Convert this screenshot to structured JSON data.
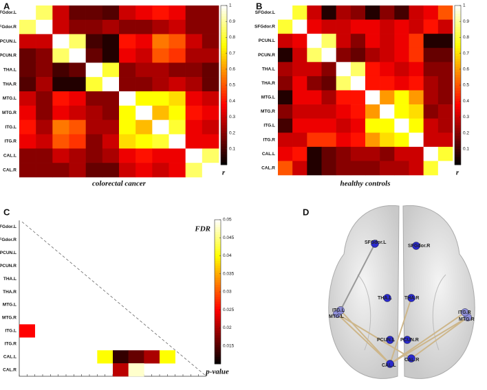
{
  "chart_data": [
    {
      "type": "heatmap",
      "panel": "A",
      "xlabel": "colorectal cancer",
      "colorbar_label": "r",
      "colormap": "hot",
      "categories": [
        "SFGdor.L",
        "SFGdor.R",
        "PCUN.L",
        "PCUN.R",
        "THA.L",
        "THA.R",
        "MTG.L",
        "MTG.R",
        "ITG.L",
        "ITG.R",
        "CAL.L",
        "CAL.R"
      ],
      "values": [
        [
          1,
          0.85,
          0.3,
          0.15,
          0.15,
          0.12,
          0.3,
          0.35,
          0.4,
          0.35,
          0.2,
          0.2
        ],
        [
          0.85,
          1,
          0.3,
          0.2,
          0.2,
          0.25,
          0.2,
          0.2,
          0.25,
          0.3,
          0.2,
          0.2
        ],
        [
          0.3,
          0.3,
          1,
          0.85,
          0.1,
          0.05,
          0.4,
          0.35,
          0.55,
          0.5,
          0.3,
          0.2
        ],
        [
          0.15,
          0.2,
          0.85,
          1,
          0.15,
          0.05,
          0.35,
          0.3,
          0.5,
          0.45,
          0.25,
          0.25
        ],
        [
          0.15,
          0.2,
          0.1,
          0.15,
          1,
          0.8,
          0.2,
          0.25,
          0.25,
          0.2,
          0.2,
          0.15
        ],
        [
          0.12,
          0.25,
          0.05,
          0.05,
          0.8,
          1,
          0.2,
          0.2,
          0.25,
          0.3,
          0.25,
          0.15
        ],
        [
          0.3,
          0.2,
          0.4,
          0.35,
          0.2,
          0.2,
          1,
          0.75,
          0.75,
          0.7,
          0.35,
          0.3
        ],
        [
          0.35,
          0.2,
          0.35,
          0.3,
          0.25,
          0.2,
          0.75,
          1,
          0.65,
          0.75,
          0.4,
          0.35
        ],
        [
          0.4,
          0.25,
          0.55,
          0.5,
          0.25,
          0.25,
          0.75,
          0.65,
          1,
          0.8,
          0.35,
          0.3
        ],
        [
          0.35,
          0.3,
          0.5,
          0.45,
          0.2,
          0.3,
          0.7,
          0.75,
          0.8,
          1,
          0.35,
          0.35
        ],
        [
          0.2,
          0.2,
          0.3,
          0.25,
          0.2,
          0.25,
          0.35,
          0.4,
          0.35,
          0.35,
          1,
          0.85
        ],
        [
          0.2,
          0.2,
          0.2,
          0.25,
          0.15,
          0.15,
          0.3,
          0.35,
          0.3,
          0.35,
          0.85,
          1
        ]
      ],
      "zlim": [
        0,
        1
      ],
      "zticks": [
        0.1,
        0.2,
        0.3,
        0.4,
        0.5,
        0.6,
        0.7,
        0.8,
        0.9,
        1
      ]
    },
    {
      "type": "heatmap",
      "panel": "B",
      "xlabel": "healthy controls",
      "colorbar_label": "r",
      "colormap": "hot",
      "categories": [
        "SFGdor.L",
        "SFGdor.R",
        "PCUN.L",
        "PCUN.R",
        "THA.L",
        "THA.R",
        "MTG.L",
        "MTG.R",
        "ITG.L",
        "ITG.R",
        "CAL.L",
        "CAL.R"
      ],
      "values": [
        [
          1,
          0.8,
          0.3,
          0.05,
          0.25,
          0.2,
          0.05,
          0.2,
          0.1,
          0.3,
          0.35,
          0.5
        ],
        [
          0.8,
          1,
          0.35,
          0.3,
          0.3,
          0.35,
          0.35,
          0.3,
          0.35,
          0.3,
          0.4,
          0.3
        ],
        [
          0.3,
          0.35,
          1,
          0.85,
          0.3,
          0.2,
          0.35,
          0.3,
          0.35,
          0.45,
          0.05,
          0.05
        ],
        [
          0.05,
          0.3,
          0.85,
          1,
          0.2,
          0.15,
          0.25,
          0.3,
          0.35,
          0.45,
          0.15,
          0.15
        ],
        [
          0.25,
          0.3,
          0.3,
          0.2,
          1,
          0.85,
          0.4,
          0.35,
          0.3,
          0.35,
          0.2,
          0.2
        ],
        [
          0.2,
          0.35,
          0.2,
          0.15,
          0.85,
          1,
          0.4,
          0.4,
          0.35,
          0.4,
          0.25,
          0.2
        ],
        [
          0.05,
          0.35,
          0.35,
          0.25,
          0.4,
          0.4,
          1,
          0.6,
          0.75,
          0.6,
          0.25,
          0.2
        ],
        [
          0.2,
          0.3,
          0.3,
          0.3,
          0.35,
          0.4,
          0.6,
          1,
          0.75,
          0.7,
          0.2,
          0.25
        ],
        [
          0.1,
          0.35,
          0.35,
          0.35,
          0.3,
          0.35,
          0.75,
          0.75,
          1,
          0.75,
          0.3,
          0.25
        ],
        [
          0.3,
          0.3,
          0.45,
          0.45,
          0.35,
          0.4,
          0.6,
          0.7,
          0.75,
          1,
          0.3,
          0.3
        ],
        [
          0.35,
          0.4,
          0.05,
          0.15,
          0.2,
          0.25,
          0.25,
          0.2,
          0.3,
          0.3,
          1,
          0.8
        ],
        [
          0.5,
          0.3,
          0.05,
          0.15,
          0.2,
          0.2,
          0.2,
          0.25,
          0.25,
          0.3,
          0.8,
          1
        ]
      ],
      "zlim": [
        0,
        1
      ],
      "zticks": [
        0.1,
        0.2,
        0.3,
        0.4,
        0.5,
        0.6,
        0.7,
        0.8,
        0.9,
        1
      ]
    },
    {
      "type": "heatmap",
      "panel": "C",
      "colorbar_title": "FDR",
      "colorbar_label": "p-value",
      "colormap": "hot",
      "categories": [
        "SFGdor.L",
        "SFGdor.R",
        "PCUN.L",
        "PCUN.R",
        "THA.L",
        "THA.R",
        "MTG.L",
        "MTG.R",
        "ITG.L",
        "ITG.R",
        "CAL.L",
        "CAL.R"
      ],
      "values": [
        [
          null,
          null,
          null,
          null,
          null,
          null,
          null,
          null,
          null,
          null,
          null,
          null
        ],
        [
          null,
          null,
          null,
          null,
          null,
          null,
          null,
          null,
          null,
          null,
          null,
          null
        ],
        [
          null,
          null,
          null,
          null,
          null,
          null,
          null,
          null,
          null,
          null,
          null,
          null
        ],
        [
          null,
          null,
          null,
          null,
          null,
          null,
          null,
          null,
          null,
          null,
          null,
          null
        ],
        [
          null,
          null,
          null,
          null,
          null,
          null,
          null,
          null,
          null,
          null,
          null,
          null
        ],
        [
          null,
          null,
          null,
          null,
          null,
          null,
          null,
          null,
          null,
          null,
          null,
          null
        ],
        [
          null,
          null,
          null,
          null,
          null,
          null,
          null,
          null,
          null,
          null,
          null,
          null
        ],
        [
          null,
          null,
          null,
          null,
          null,
          null,
          null,
          null,
          null,
          null,
          null,
          null
        ],
        [
          0.025,
          null,
          null,
          null,
          null,
          null,
          null,
          null,
          null,
          null,
          null,
          null
        ],
        [
          null,
          null,
          null,
          null,
          null,
          null,
          null,
          null,
          null,
          null,
          null,
          null
        ],
        [
          null,
          null,
          null,
          null,
          null,
          0.04,
          0.013,
          0.016,
          0.02,
          0.04,
          null,
          null
        ],
        [
          null,
          null,
          null,
          null,
          null,
          null,
          0.021,
          0.048,
          null,
          null,
          null,
          null
        ]
      ],
      "zlim": [
        0.01,
        0.05
      ],
      "zticks": [
        0.015,
        0.02,
        0.025,
        0.03,
        0.035,
        0.04,
        0.045,
        0.05
      ]
    }
  ],
  "brain_network": {
    "panel": "D",
    "nodes": [
      "SFGdor.L",
      "SFGdor.R",
      "PCUN.L",
      "PCUN.R",
      "THA.L",
      "THA.R",
      "MTG.L",
      "MTG.R",
      "ITG.L",
      "ITG.R",
      "CAL.L",
      "CAL.R"
    ]
  }
}
